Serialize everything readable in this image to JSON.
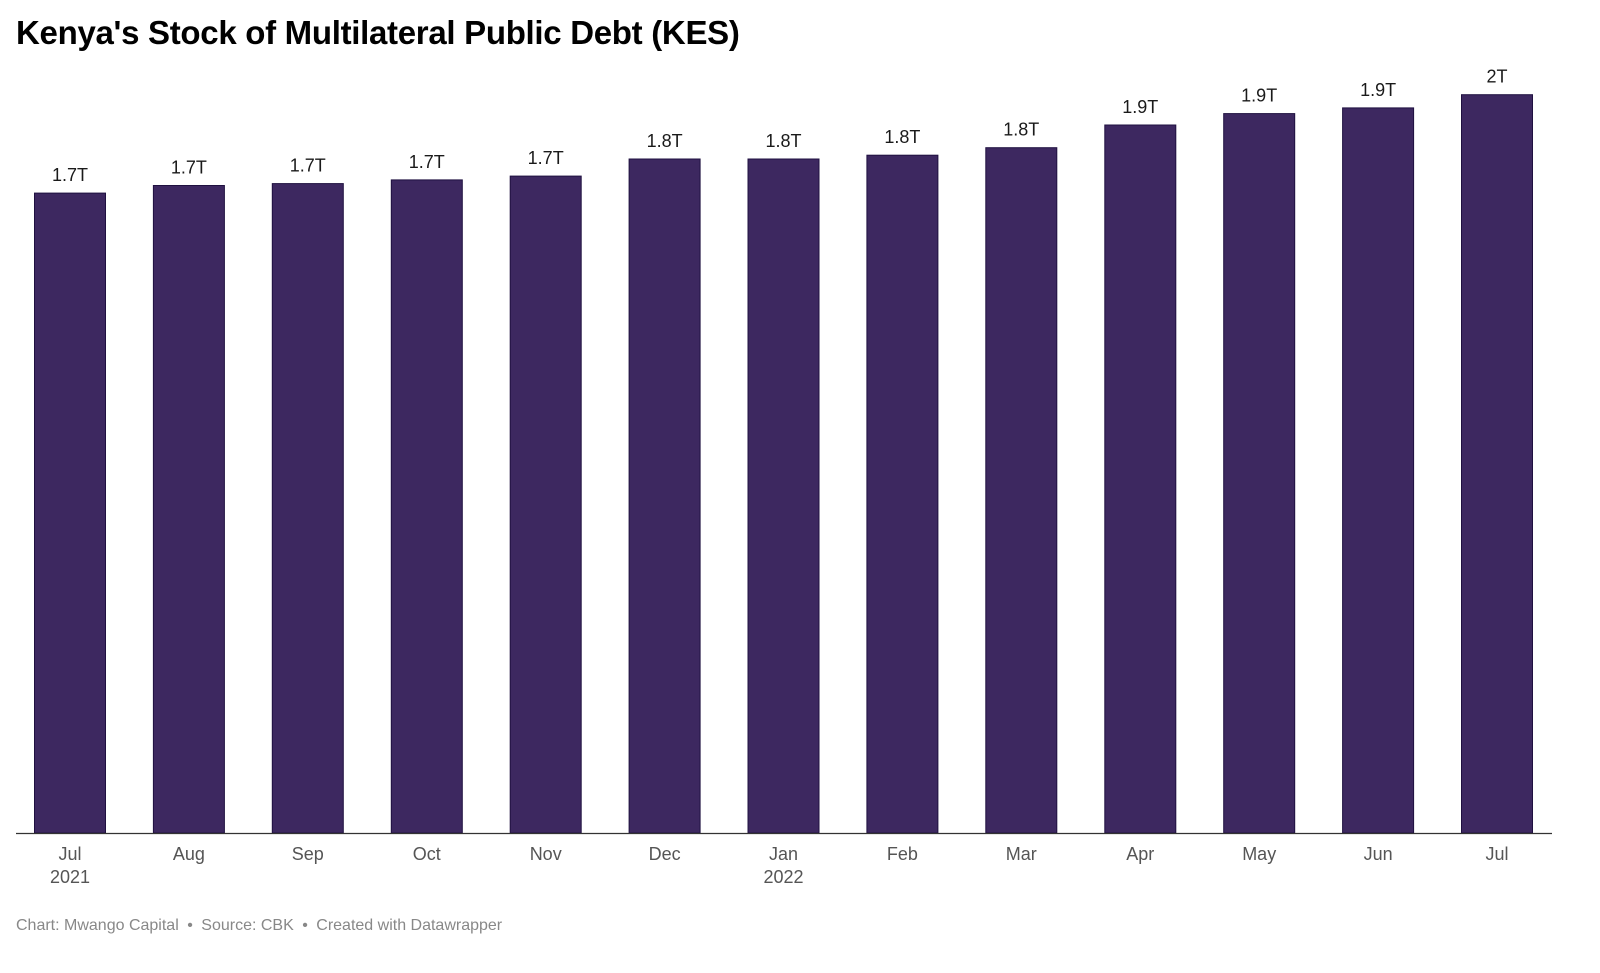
{
  "chart_data": {
    "type": "bar",
    "title": "Kenya's Stock of Multilateral Public Debt (KES)",
    "categories": [
      "Jul",
      "Aug",
      "Sep",
      "Oct",
      "Nov",
      "Dec",
      "Jan",
      "Feb",
      "Mar",
      "Apr",
      "May",
      "Jun",
      "Jul"
    ],
    "year_labels": [
      "2021",
      "",
      "",
      "",
      "",
      "",
      "2022",
      "",
      "",
      "",
      "",
      "",
      ""
    ],
    "values": [
      1.69,
      1.71,
      1.715,
      1.725,
      1.735,
      1.78,
      1.78,
      1.79,
      1.81,
      1.87,
      1.9,
      1.915,
      1.95
    ],
    "data_labels": [
      "1.7T",
      "1.7T",
      "1.7T",
      "1.7T",
      "1.7T",
      "1.8T",
      "1.8T",
      "1.8T",
      "1.8T",
      "1.9T",
      "1.9T",
      "1.9T",
      "2T"
    ],
    "ylim": [
      0,
      2.2
    ],
    "grid": false,
    "legend": "none",
    "bar_color": "#3d2860"
  },
  "footer": {
    "chart_credit": "Chart: Mwango Capital",
    "source": "Source: CBK",
    "created_with": "Created with Datawrapper",
    "separator": "•"
  }
}
